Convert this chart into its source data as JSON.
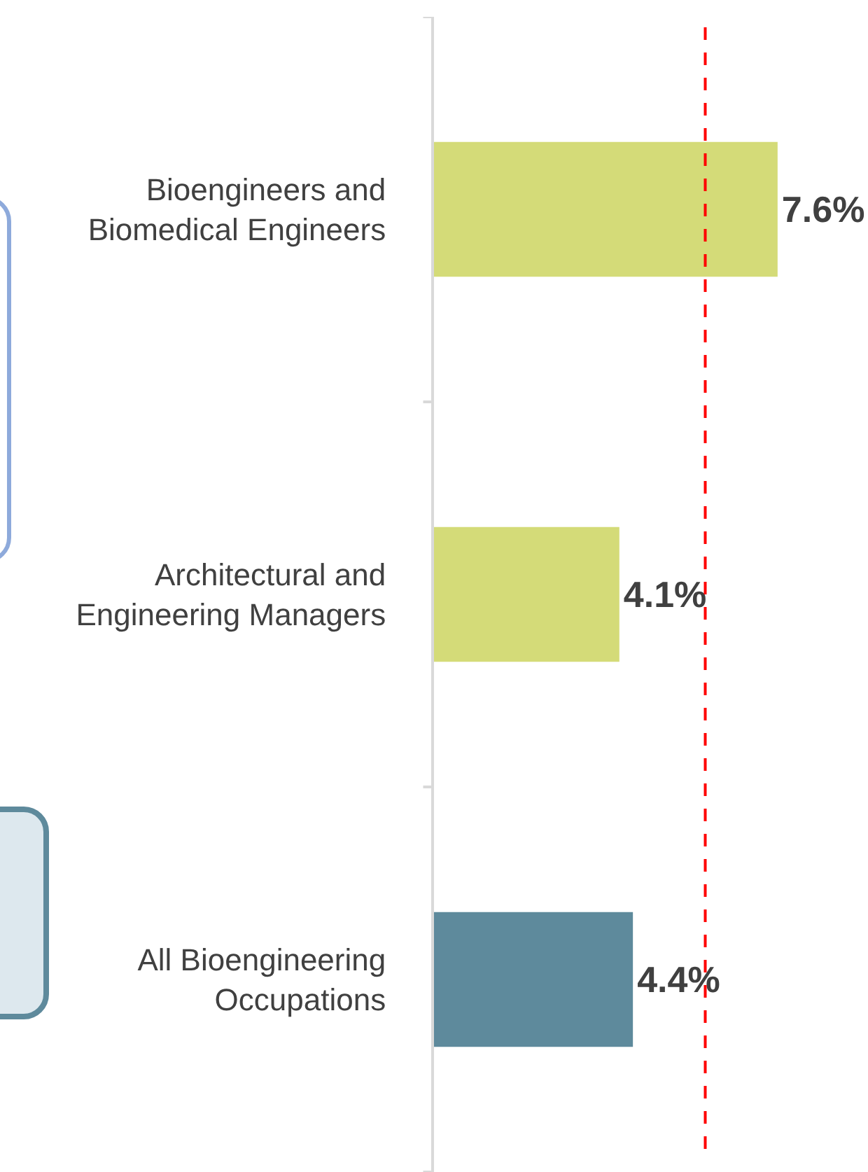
{
  "chart_data": {
    "type": "bar",
    "orientation": "horizontal",
    "categories": [
      "Bioengineers and Biomedical Engineers",
      "Architectural and Engineering Managers",
      "All Bioengineering Occupations"
    ],
    "values": [
      7.6,
      4.1,
      4.4
    ],
    "colors": [
      "#d4db78",
      "#d4db78",
      "#5e8a9c"
    ],
    "value_labels": [
      "7.6%",
      "4.1%",
      "4.4%"
    ],
    "xlim": [
      0,
      9.6
    ],
    "tick_labels": "y",
    "ref_lines": [
      {
        "axis": "x",
        "value": 6.0,
        "color": "#ff0000",
        "line_style": "dashed"
      }
    ]
  }
}
